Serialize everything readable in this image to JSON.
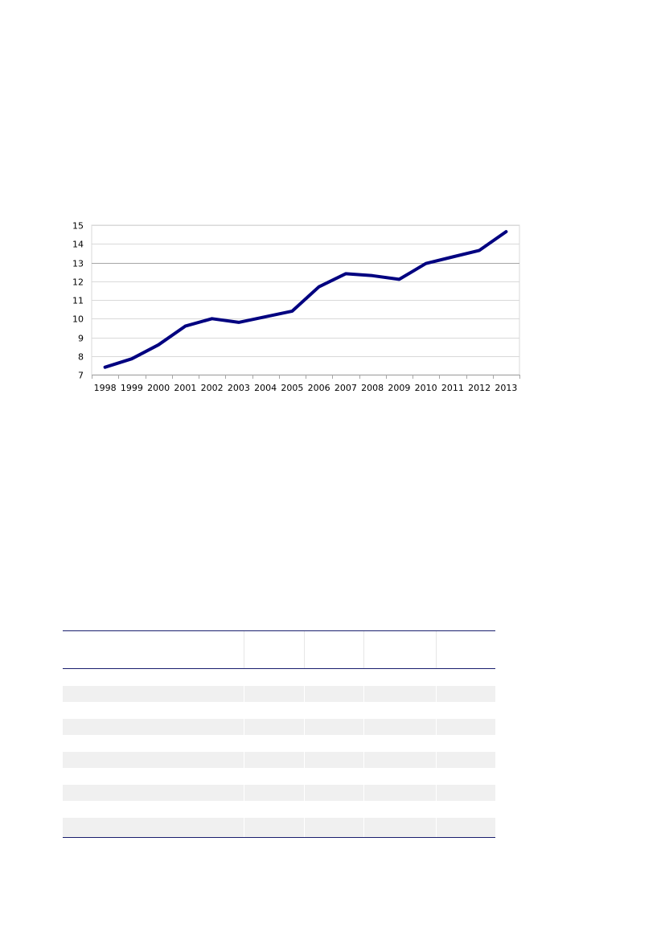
{
  "chart_data": {
    "type": "line",
    "categories": [
      "1998",
      "1999",
      "2000",
      "2001",
      "2002",
      "2003",
      "2004",
      "2005",
      "2006",
      "2007",
      "2008",
      "2009",
      "2010",
      "2011",
      "2012",
      "2013"
    ],
    "series": [
      {
        "values": [
          7.4,
          7.85,
          8.6,
          9.6,
          10.0,
          9.8,
          10.1,
          10.4,
          11.7,
          12.4,
          12.3,
          12.1,
          12.95,
          13.3,
          13.65,
          14.65
        ]
      }
    ],
    "ylim": [
      7,
      15
    ],
    "yticks": [
      "7",
      "8",
      "9",
      "10",
      "11",
      "12",
      "13",
      "14",
      "15"
    ],
    "title": "",
    "xlabel": "",
    "ylabel": "",
    "grid": true,
    "line_color": "#000080"
  },
  "table": {
    "header": [
      "",
      "",
      "",
      "",
      ""
    ],
    "rows": [
      [
        "",
        "",
        "",
        "",
        ""
      ],
      [
        "",
        "",
        "",
        "",
        ""
      ],
      [
        "",
        "",
        "",
        "",
        ""
      ],
      [
        "",
        "",
        "",
        "",
        ""
      ],
      [
        "",
        "",
        "",
        "",
        ""
      ],
      [
        "",
        "",
        "",
        "",
        ""
      ],
      [
        "",
        "",
        "",
        "",
        ""
      ],
      [
        "",
        "",
        "",
        "",
        ""
      ],
      [
        "",
        "",
        "",
        "",
        ""
      ],
      [
        "",
        "",
        "",
        "",
        ""
      ]
    ],
    "rule_color": "#1a1f6e"
  }
}
